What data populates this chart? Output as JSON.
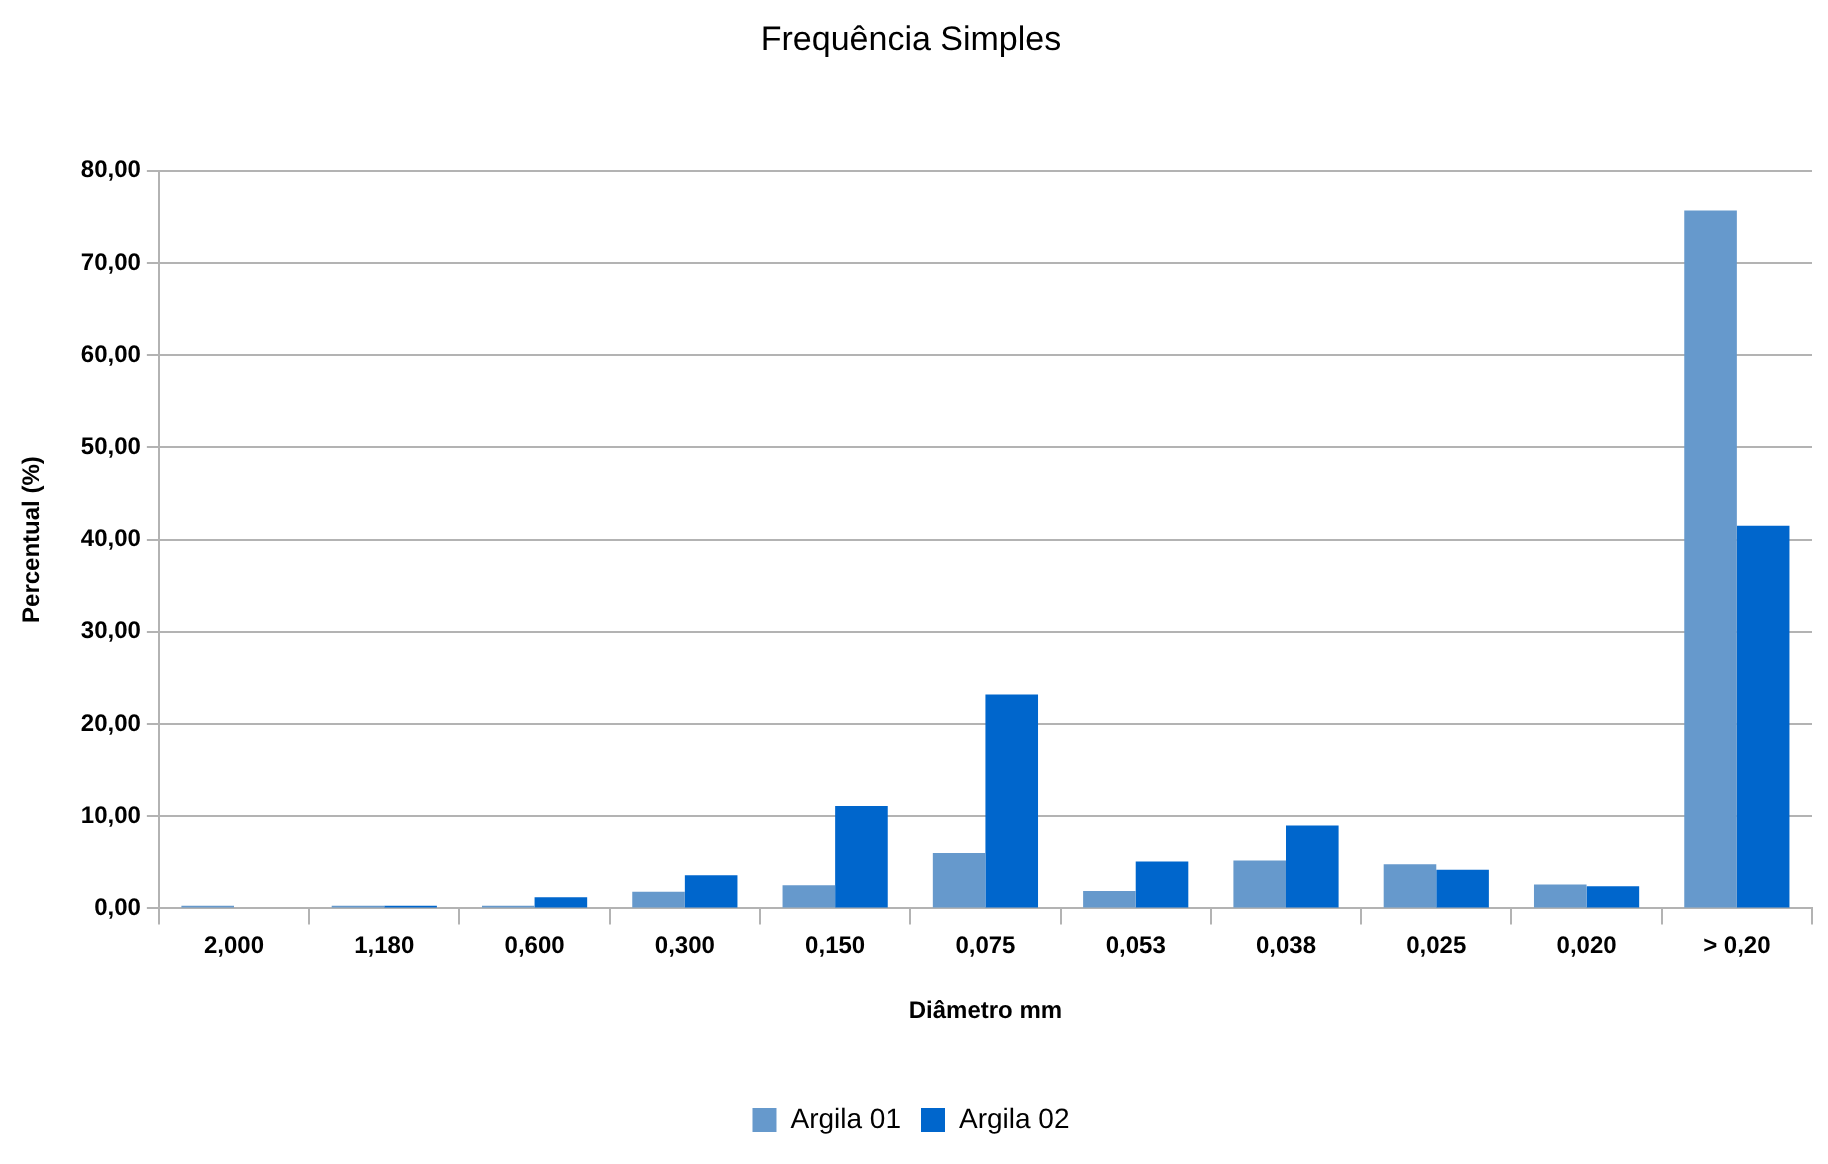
{
  "chart_data": {
    "type": "bar",
    "title": "Frequência Simples",
    "xlabel": "Diâmetro mm",
    "ylabel": "Percentual (%)",
    "categories": [
      "2,000",
      "1,180",
      "0,600",
      "0,300",
      "0,150",
      "0,075",
      "0,053",
      "0,038",
      "0,025",
      "0,020",
      "> 0,20"
    ],
    "series": [
      {
        "name": "Argila 01",
        "color": "#6699cc",
        "values": [
          0.3,
          0.3,
          0.3,
          1.8,
          2.5,
          6.0,
          1.9,
          5.2,
          4.8,
          2.6,
          75.7
        ]
      },
      {
        "name": "Argila 02",
        "color": "#0066cc",
        "values": [
          0,
          0.3,
          1.2,
          3.6,
          11.1,
          23.2,
          5.1,
          9.0,
          4.2,
          2.4,
          41.5
        ]
      }
    ],
    "ylim": [
      0,
      80
    ],
    "yticks": [
      {
        "value": 0,
        "label": "0,00"
      },
      {
        "value": 10,
        "label": "10,00"
      },
      {
        "value": 20,
        "label": "20,00"
      },
      {
        "value": 30,
        "label": "30,00"
      },
      {
        "value": 40,
        "label": "40,00"
      },
      {
        "value": 50,
        "label": "50,00"
      },
      {
        "value": 60,
        "label": "60,00"
      },
      {
        "value": 70,
        "label": "70,00"
      },
      {
        "value": 80,
        "label": "80,00"
      }
    ],
    "grid": "y",
    "legend": "bottom"
  }
}
